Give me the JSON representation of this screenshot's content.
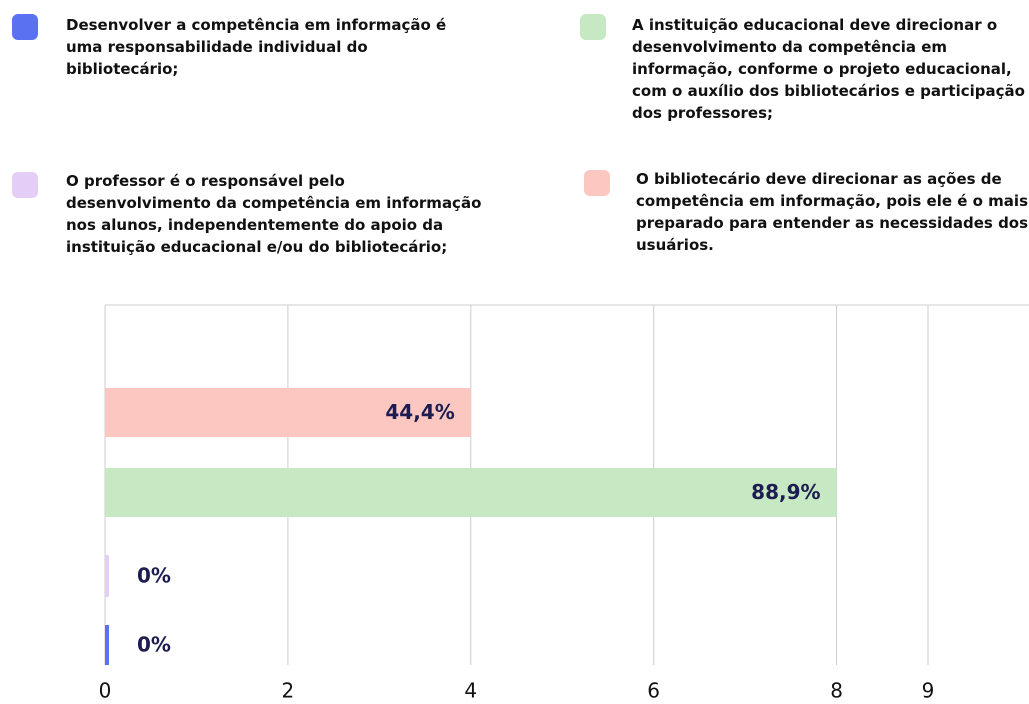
{
  "chart_data": {
    "type": "barh",
    "series": [
      {
        "name": "Desenvolver a competência em informação é uma responsabilidade individual do bibliotecário;",
        "color": "#5a72f2",
        "values": [
          0
        ],
        "value_labels": [
          "0%"
        ]
      },
      {
        "name": "A instituição educacional deve direcionar o desenvolvimento da competência em informação, conforme o projeto educacional, com o auxílio dos bibliotecários e participação dos professores;",
        "color": "#c6e8c2",
        "values": [
          8
        ],
        "value_labels": [
          "88,9%"
        ]
      },
      {
        "name": "O professor é o responsável pelo desenvolvimento da competência em informação nos alunos, independentemente do apoio da instituição educacional e/ou do bibliotecário;",
        "color": "#e4cdf6",
        "values": [
          0
        ],
        "value_labels": [
          "0%"
        ]
      },
      {
        "name": "O bibliotecário deve direcionar as ações de competência em informação, pois ele é o mais preparado para entender as necessidades dos usuários.",
        "color": "#fcc6c1",
        "values": [
          4
        ],
        "value_labels": [
          "44,4%"
        ]
      }
    ],
    "xlim": [
      0,
      9
    ],
    "xticks": [
      0,
      2,
      4,
      6,
      8,
      9
    ],
    "grid": true
  }
}
